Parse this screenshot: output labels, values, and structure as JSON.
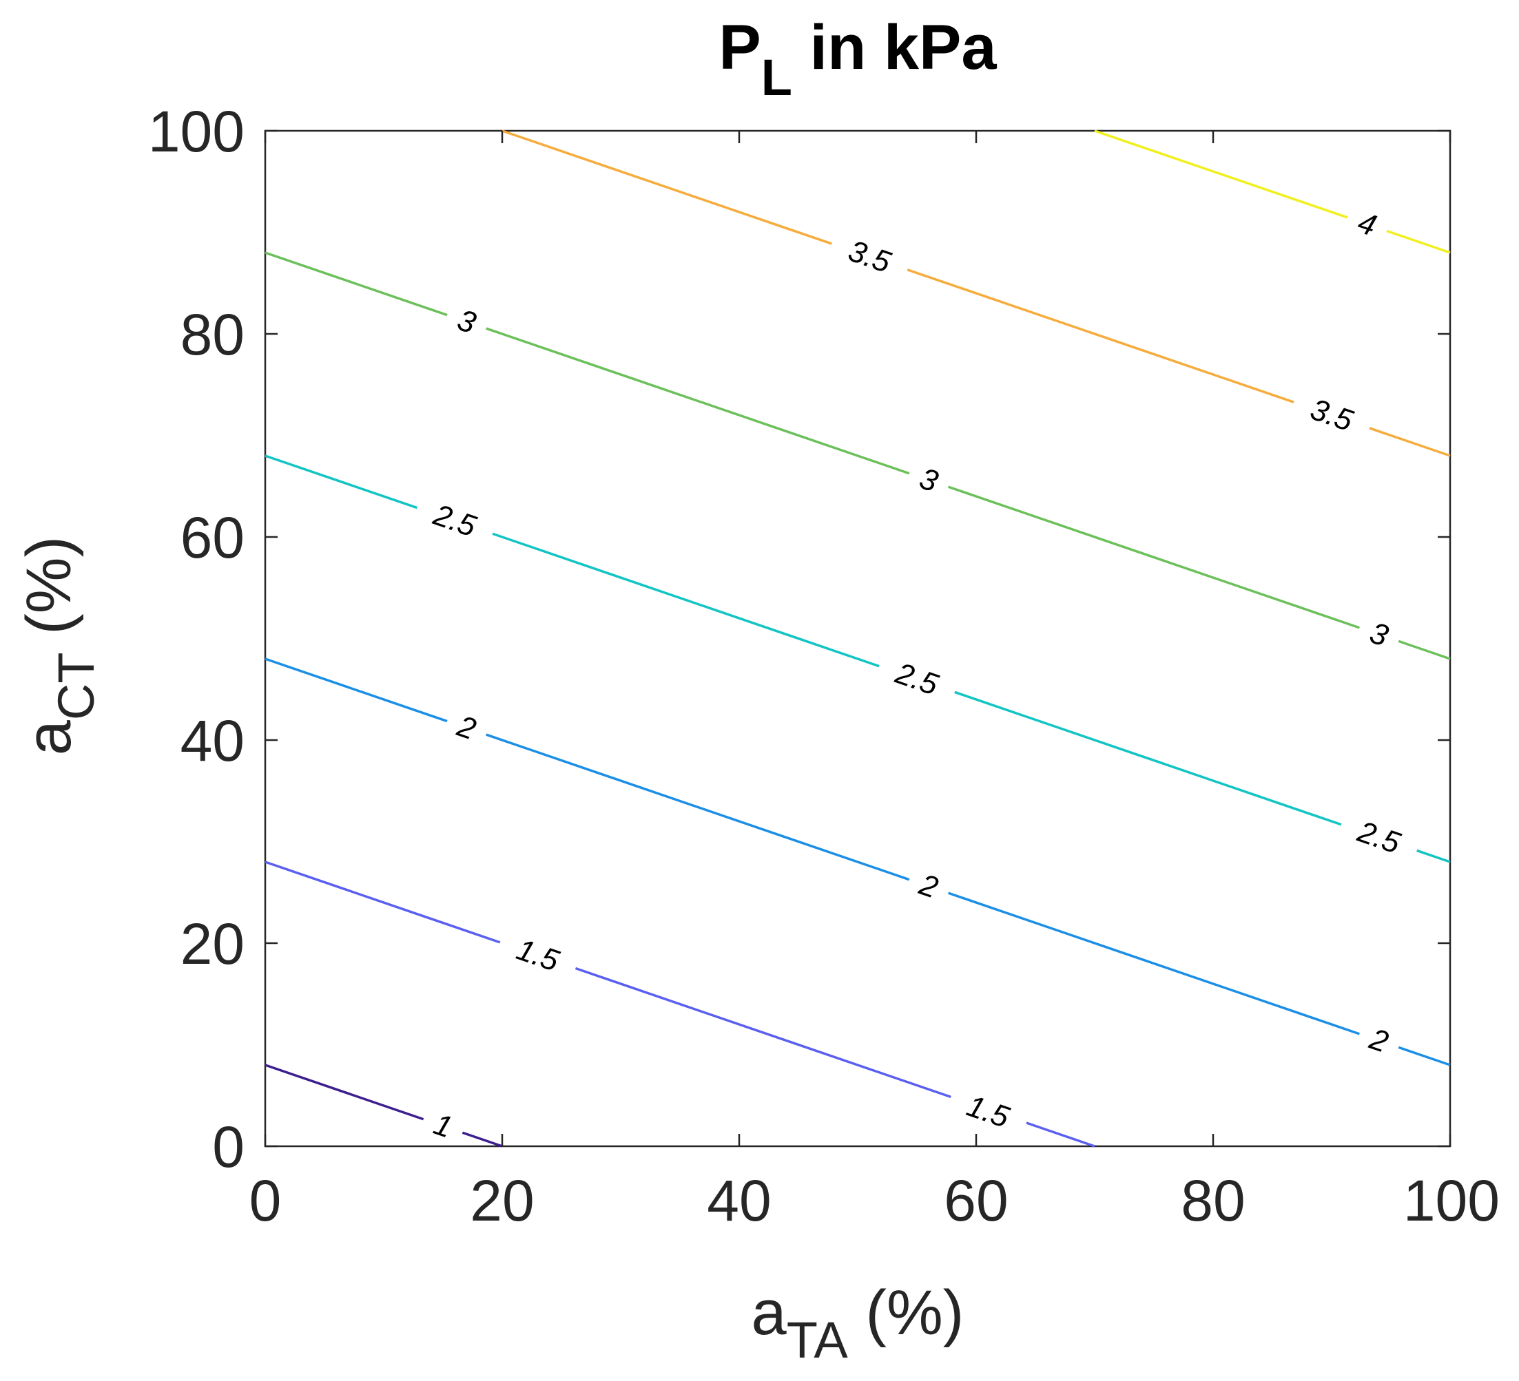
{
  "chart_data": {
    "type": "contour",
    "title": {
      "main": "P",
      "sub": "L",
      "rest": " in kPa"
    },
    "xlabel": {
      "main": "a",
      "sub": "TA",
      "rest": " (%)"
    },
    "ylabel": {
      "main": "a",
      "sub": "CT",
      "rest": " (%)"
    },
    "xlim": [
      0,
      100
    ],
    "ylim": [
      0,
      100
    ],
    "xticks": [
      0,
      20,
      40,
      60,
      80,
      100
    ],
    "yticks": [
      0,
      20,
      40,
      60,
      80,
      100
    ],
    "xtick_labels": [
      "0",
      "20",
      "40",
      "60",
      "80",
      "100"
    ],
    "ytick_labels": [
      "0",
      "20",
      "40",
      "60",
      "80",
      "100"
    ],
    "grid": false,
    "levels": [
      {
        "value": 1,
        "label": "1",
        "color": "#3d1e8f",
        "points": [
          [
            0,
            8
          ],
          [
            20,
            0
          ]
        ],
        "label_positions": [
          [
            15,
            2
          ]
        ]
      },
      {
        "value": 1.5,
        "label": "1.5",
        "color": "#5a5ff0",
        "points": [
          [
            0,
            28
          ],
          [
            70,
            0
          ]
        ],
        "label_positions": [
          [
            23,
            18.8
          ],
          [
            61,
            3.4
          ]
        ]
      },
      {
        "value": 2,
        "label": "2",
        "color": "#1b8fe6",
        "points": [
          [
            0,
            48
          ],
          [
            100,
            8
          ]
        ],
        "label_positions": [
          [
            17,
            41.2
          ],
          [
            56,
            25.6
          ],
          [
            94,
            10.4
          ]
        ]
      },
      {
        "value": 2.5,
        "label": "2.5",
        "color": "#12c4c4",
        "points": [
          [
            0,
            68
          ],
          [
            100,
            28
          ]
        ],
        "label_positions": [
          [
            16,
            61.6
          ],
          [
            55,
            46
          ],
          [
            94,
            30.4
          ]
        ]
      },
      {
        "value": 3,
        "label": "3",
        "color": "#6cc05a",
        "points": [
          [
            0,
            88
          ],
          [
            100,
            48
          ]
        ],
        "label_positions": [
          [
            17,
            81.2
          ],
          [
            56,
            65.6
          ],
          [
            94,
            50.4
          ]
        ]
      },
      {
        "value": 3.5,
        "label": "3.5",
        "color": "#f6ac3c",
        "points": [
          [
            20,
            100
          ],
          [
            100,
            68
          ]
        ],
        "label_positions": [
          [
            51,
            87.6
          ],
          [
            90,
            72
          ]
        ]
      },
      {
        "value": 4,
        "label": "4",
        "color": "#f0f020",
        "points": [
          [
            70,
            100
          ],
          [
            100,
            88
          ]
        ],
        "label_positions": [
          [
            93,
            90.8
          ]
        ]
      }
    ]
  }
}
